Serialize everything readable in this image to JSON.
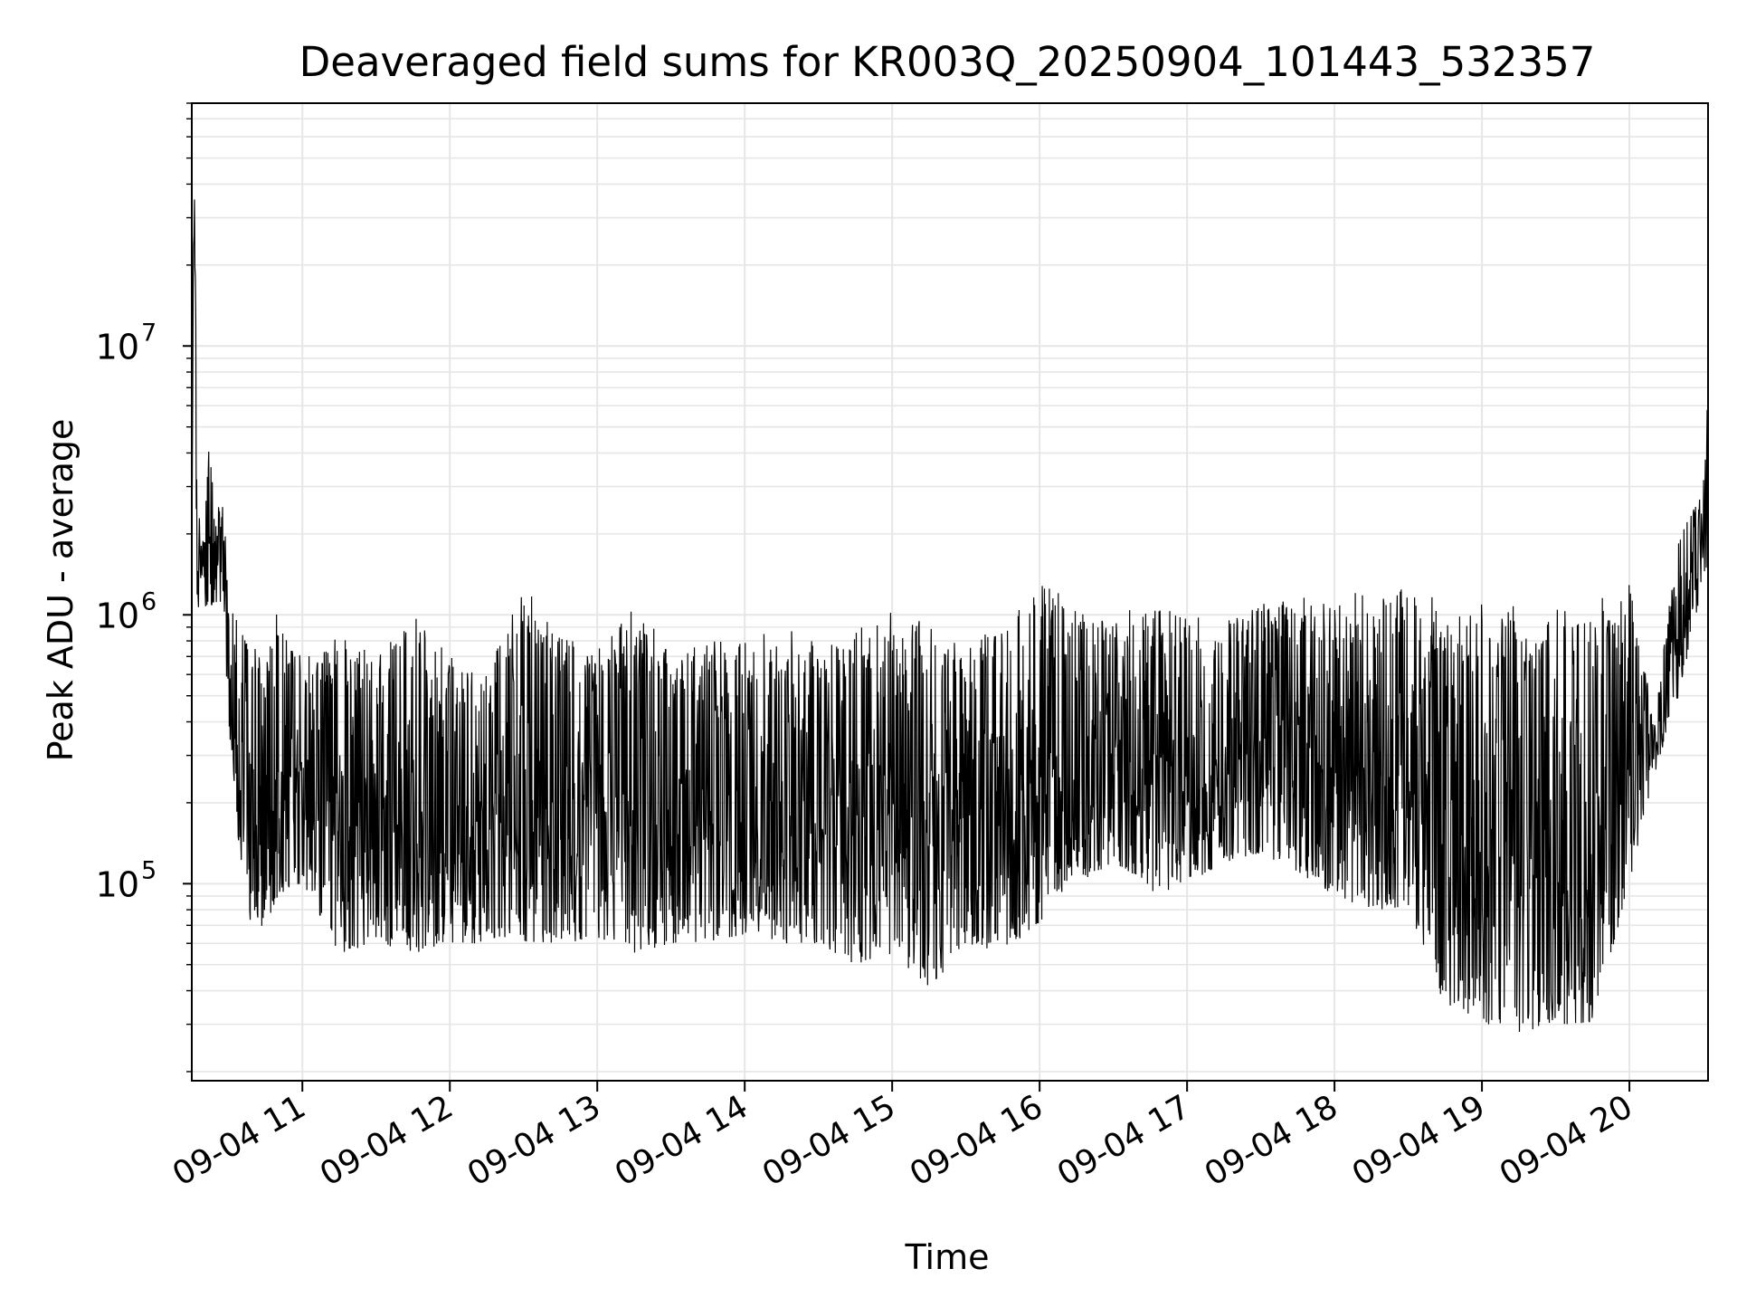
{
  "chart_data": {
    "type": "line",
    "title": "Deaveraged field sums for KR003Q_20250904_101443_532357",
    "xlabel": "Time",
    "ylabel": "Peak ADU - average",
    "yscale": "log",
    "grid": true,
    "legend": "none",
    "line_color": "#000000",
    "grid_color": "#e6e6e6",
    "xlim": [
      "09-04 10:15",
      "09-04 20:32"
    ],
    "ylim": [
      18500,
      80000000
    ],
    "x_ticks": [
      "09-04 11",
      "09-04 12",
      "09-04 13",
      "09-04 14",
      "09-04 15",
      "09-04 16",
      "09-04 17",
      "09-04 18",
      "09-04 19",
      "09-04 20"
    ],
    "x_tick_times": [
      "09-04 11:00",
      "09-04 12:00",
      "09-04 13:00",
      "09-04 14:00",
      "09-04 15:00",
      "09-04 16:00",
      "09-04 17:00",
      "09-04 18:00",
      "09-04 19:00",
      "09-04 20:00"
    ],
    "y_ticks": [
      {
        "base": "10",
        "exp": "5",
        "value": 100000
      },
      {
        "base": "10",
        "exp": "6",
        "value": 1000000
      },
      {
        "base": "10",
        "exp": "7",
        "value": 10000000
      }
    ],
    "series": [
      {
        "x": [
          "09-04 10:15",
          "09-04 10:16",
          "09-04 10:17",
          "09-04 10:18",
          "09-04 10:19",
          "09-04 10:20",
          "09-04 10:22",
          "09-04 10:25",
          "09-04 10:28",
          "09-04 10:30",
          "09-04 10:35",
          "09-04 10:40",
          "09-04 10:45",
          "09-04 10:50",
          "09-04 11:00",
          "09-04 11:15",
          "09-04 11:30",
          "09-04 11:45",
          "09-04 12:00",
          "09-04 12:15",
          "09-04 12:30",
          "09-04 12:45",
          "09-04 13:00",
          "09-04 13:15",
          "09-04 13:30",
          "09-04 13:45",
          "09-04 14:00",
          "09-04 14:15",
          "09-04 14:30",
          "09-04 14:45",
          "09-04 15:00",
          "09-04 15:15",
          "09-04 15:30",
          "09-04 15:45",
          "09-04 16:00",
          "09-04 16:15",
          "09-04 16:30",
          "09-04 16:45",
          "09-04 17:00",
          "09-04 17:15",
          "09-04 17:30",
          "09-04 17:45",
          "09-04 18:00",
          "09-04 18:15",
          "09-04 18:30",
          "09-04 18:45",
          "09-04 19:00",
          "09-04 19:15",
          "09-04 19:30",
          "09-04 19:45",
          "09-04 20:00",
          "09-04 20:10",
          "09-04 20:20",
          "09-04 20:30",
          "09-04 20:32"
        ],
        "low": [
          1500000,
          30000000,
          1100000,
          1050000,
          1100000,
          1050000,
          1050000,
          1100000,
          1000000,
          400000,
          110000,
          60000,
          70000,
          90000,
          100000,
          55000,
          60000,
          55000,
          60000,
          60000,
          60000,
          60000,
          60000,
          55000,
          60000,
          60000,
          65000,
          60000,
          60000,
          50000,
          55000,
          40000,
          60000,
          55000,
          70000,
          100000,
          120000,
          90000,
          100000,
          120000,
          130000,
          110000,
          90000,
          80000,
          80000,
          35000,
          30000,
          28000,
          30000,
          30000,
          100000,
          250000,
          500000,
          1300000,
          1500000
        ],
        "high": [
          5000000,
          55000000,
          5500000,
          2400000,
          1800000,
          2100000,
          4400000,
          2700000,
          2600000,
          1100000,
          900000,
          800000,
          700000,
          1100000,
          700000,
          900000,
          700000,
          1000000,
          700000,
          600000,
          1300000,
          900000,
          800000,
          1200000,
          700000,
          800000,
          800000,
          900000,
          800000,
          900000,
          1100000,
          1000000,
          800000,
          900000,
          1300000,
          1200000,
          1100000,
          1100000,
          1000000,
          1100000,
          1100000,
          1200000,
          1100000,
          1300000,
          1300000,
          1100000,
          1100000,
          1100000,
          1100000,
          1100000,
          1400000,
          400000,
          2000000,
          3000000,
          8500000
        ]
      }
    ]
  }
}
